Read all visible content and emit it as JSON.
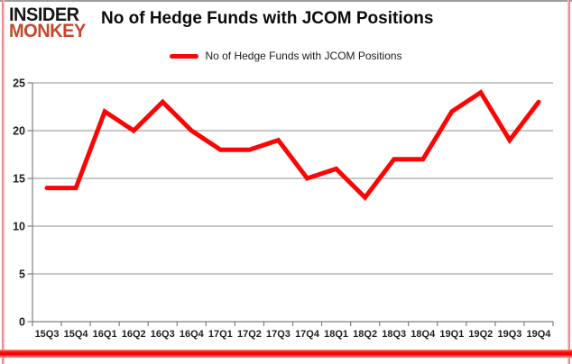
{
  "logo": {
    "line1": "INSIDER",
    "line2": "MONKEY",
    "line2_color": "#c2492b"
  },
  "header": {
    "title": "No of Hedge Funds with JCOM Positions"
  },
  "legend": {
    "label": "No of Hedge Funds with JCOM Positions",
    "line_color": "#fb0505"
  },
  "frame": {
    "bottom_bar_color": "#fb0b0b",
    "side_border_color": "#e2737d",
    "top_border_color": "#9d9d9d"
  },
  "chart_data": {
    "type": "line",
    "title": "No of Hedge Funds with JCOM Positions",
    "categories": [
      "15Q3",
      "15Q4",
      "16Q1",
      "16Q2",
      "16Q3",
      "16Q4",
      "17Q1",
      "17Q2",
      "17Q3",
      "17Q4",
      "18Q1",
      "18Q2",
      "18Q3",
      "18Q4",
      "19Q1",
      "19Q2",
      "19Q3",
      "19Q4"
    ],
    "series": [
      {
        "name": "No of Hedge Funds with JCOM Positions",
        "color": "#fb0505",
        "values": [
          14,
          14,
          22,
          20,
          23,
          20,
          18,
          18,
          19,
          15,
          16,
          13,
          17,
          17,
          22,
          24,
          19,
          23
        ]
      }
    ],
    "xlabel": "",
    "ylabel": "",
    "ylim": [
      0,
      25
    ],
    "yticks": [
      0,
      5,
      10,
      15,
      20,
      25
    ],
    "grid": true,
    "gridline_color": "#8f8f8f",
    "axis_color": "#7f7f7f",
    "tick_label_color": "#1f1f1f",
    "legend_position": "top"
  }
}
